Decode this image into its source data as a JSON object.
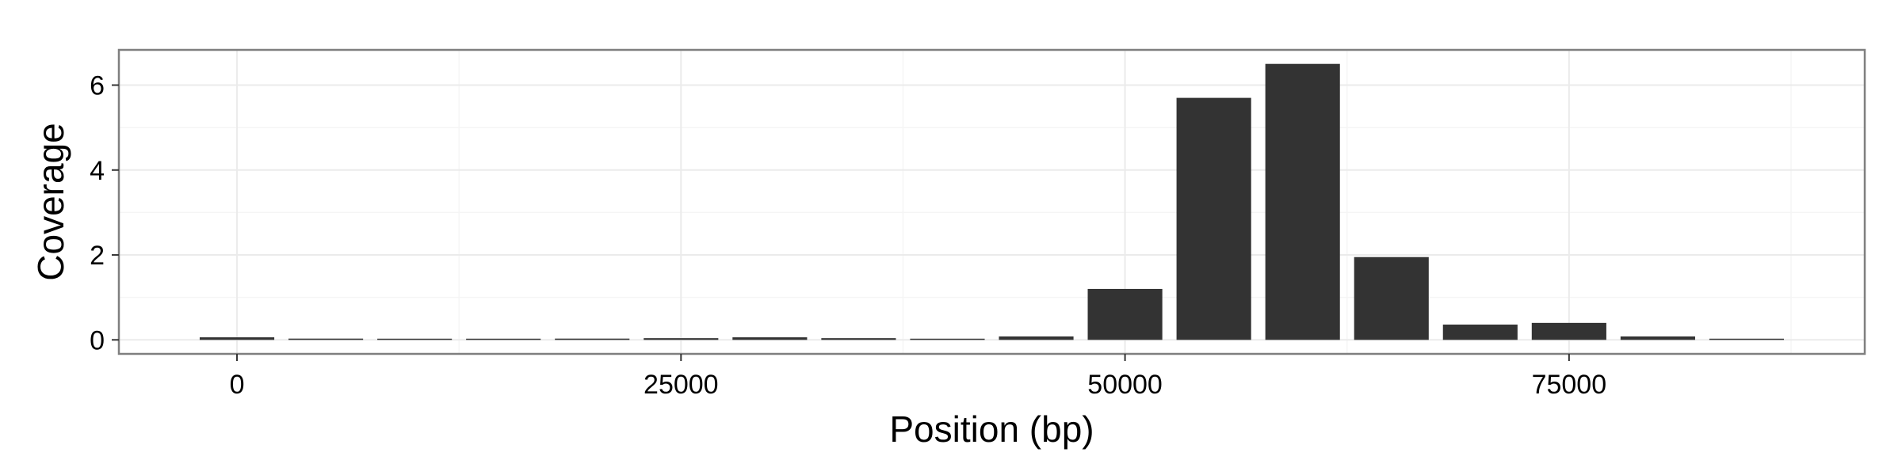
{
  "chart_data": {
    "type": "bar",
    "title": "",
    "xlabel": "Position (bp)",
    "ylabel": "Coverage",
    "x": [
      0,
      5000,
      10000,
      15000,
      20000,
      25000,
      30000,
      35000,
      40000,
      45000,
      50000,
      55000,
      60000,
      65000,
      70000,
      75000,
      80000,
      85000
    ],
    "values": [
      0.06,
      0.03,
      0.02,
      0.02,
      0.03,
      0.04,
      0.06,
      0.04,
      0.02,
      0.08,
      1.2,
      5.7,
      6.5,
      1.95,
      0.36,
      0.4,
      0.08,
      0.01
    ],
    "bin_width": 5000,
    "xlim": [
      -6650,
      91650
    ],
    "ylim": [
      -0.33,
      6.83
    ],
    "x_ticks": [
      "0",
      "25000",
      "50000",
      "75000"
    ],
    "y_ticks": [
      "0",
      "2",
      "4",
      "6"
    ],
    "grid": true,
    "theme": "bw",
    "colors": {
      "bar_fill": "#333333",
      "panel_border": "#7f7f7f",
      "grid_major": "#ebebeb",
      "grid_minor": "#f5f5f5",
      "text": "#000000"
    }
  }
}
